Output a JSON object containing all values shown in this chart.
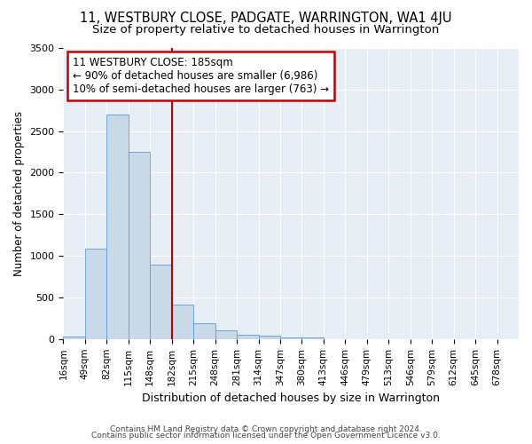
{
  "title": "11, WESTBURY CLOSE, PADGATE, WARRINGTON, WA1 4JU",
  "subtitle": "Size of property relative to detached houses in Warrington",
  "xlabel": "Distribution of detached houses by size in Warrington",
  "ylabel": "Number of detached properties",
  "bar_values": [
    30,
    1090,
    2700,
    2250,
    890,
    415,
    185,
    105,
    55,
    40,
    20,
    15,
    0,
    0,
    0,
    0,
    0,
    0,
    0,
    0,
    0
  ],
  "bin_labels": [
    "16sqm",
    "49sqm",
    "82sqm",
    "115sqm",
    "148sqm",
    "182sqm",
    "215sqm",
    "248sqm",
    "281sqm",
    "314sqm",
    "347sqm",
    "380sqm",
    "413sqm",
    "446sqm",
    "479sqm",
    "513sqm",
    "546sqm",
    "579sqm",
    "612sqm",
    "645sqm",
    "678sqm"
  ],
  "bar_color": "#c9d9e8",
  "bar_edge_color": "#5b9bd5",
  "vline_x_index": 5,
  "vline_color": "#c00000",
  "annotation_text": "11 WESTBURY CLOSE: 185sqm\n← 90% of detached houses are smaller (6,986)\n10% of semi-detached houses are larger (763) →",
  "annotation_box_color": "white",
  "annotation_box_edge": "#c00000",
  "ylim": [
    0,
    3500
  ],
  "background_color": "#e8eef5",
  "footer_line1": "Contains HM Land Registry data © Crown copyright and database right 2024.",
  "footer_line2": "Contains public sector information licensed under the Open Government Licence v3.0.",
  "title_fontsize": 10.5,
  "subtitle_fontsize": 9.5
}
